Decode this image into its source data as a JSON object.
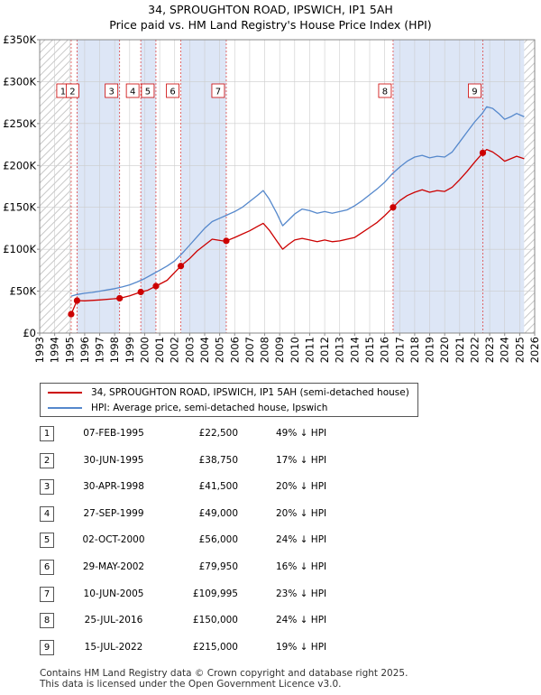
{
  "title_line1": "34, SPROUGHTON ROAD, IPSWICH, IP1 5AH",
  "title_line2": "Price paid vs. HM Land Registry's House Price Index (HPI)",
  "legend": {
    "red_label": "34, SPROUGHTON ROAD, IPSWICH, IP1 5AH (semi-detached house)",
    "blue_label": "HPI: Average price, semi-detached house, Ipswich"
  },
  "colors": {
    "red": "#cc0000",
    "blue": "#5588cc",
    "shade": "#dde6f6",
    "hatch": "#c8c8c8",
    "grid": "#cccccc",
    "vline": "#dd4444"
  },
  "transactions": [
    {
      "num": "1",
      "date": "07-FEB-1995",
      "price": "£22,500",
      "hpi": "49% ↓ HPI"
    },
    {
      "num": "2",
      "date": "30-JUN-1995",
      "price": "£38,750",
      "hpi": "17% ↓ HPI"
    },
    {
      "num": "3",
      "date": "30-APR-1998",
      "price": "£41,500",
      "hpi": "20% ↓ HPI"
    },
    {
      "num": "4",
      "date": "27-SEP-1999",
      "price": "£49,000",
      "hpi": "20% ↓ HPI"
    },
    {
      "num": "5",
      "date": "02-OCT-2000",
      "price": "£56,000",
      "hpi": "24% ↓ HPI"
    },
    {
      "num": "6",
      "date": "29-MAY-2002",
      "price": "£79,950",
      "hpi": "16% ↓ HPI"
    },
    {
      "num": "7",
      "date": "10-JUN-2005",
      "price": "£109,995",
      "hpi": "23% ↓ HPI"
    },
    {
      "num": "8",
      "date": "25-JUL-2016",
      "price": "£150,000",
      "hpi": "24% ↓ HPI"
    },
    {
      "num": "9",
      "date": "15-JUL-2022",
      "price": "£215,000",
      "hpi": "19% ↓ HPI"
    }
  ],
  "footer_line1": "Contains HM Land Registry data © Crown copyright and database right 2025.",
  "footer_line2": "This data is licensed under the Open Government Licence v3.0.",
  "chart_data": {
    "type": "line",
    "title": "34, SPROUGHTON ROAD, IPSWICH, IP1 5AH — Price paid vs. HM Land Registry's House Price Index (HPI)",
    "xlim": [
      1993,
      2026
    ],
    "ylim": [
      0,
      350000
    ],
    "x_ticks": [
      "1993",
      "1994",
      "1995",
      "1996",
      "1997",
      "1998",
      "1999",
      "2000",
      "2001",
      "2002",
      "2003",
      "2004",
      "2005",
      "2006",
      "2007",
      "2008",
      "2009",
      "2010",
      "2011",
      "2012",
      "2013",
      "2014",
      "2015",
      "2016",
      "2017",
      "2018",
      "2019",
      "2020",
      "2021",
      "2022",
      "2023",
      "2024",
      "2025",
      "2026"
    ],
    "y_ticks": [
      {
        "value": 0,
        "label": "£0"
      },
      {
        "value": 50000,
        "label": "£50K"
      },
      {
        "value": 100000,
        "label": "£100K"
      },
      {
        "value": 150000,
        "label": "£150K"
      },
      {
        "value": 200000,
        "label": "£200K"
      },
      {
        "value": 250000,
        "label": "£250K"
      },
      {
        "value": 300000,
        "label": "£300K"
      },
      {
        "value": 350000,
        "label": "£350K"
      }
    ],
    "hatched_ranges": [
      [
        1993,
        1995.1
      ],
      [
        2025.3,
        2026
      ]
    ],
    "sales": [
      {
        "label": "1",
        "x": 1995.1,
        "y": 22500
      },
      {
        "label": "2",
        "x": 1995.49,
        "y": 38750
      },
      {
        "label": "3",
        "x": 1998.33,
        "y": 41500
      },
      {
        "label": "4",
        "x": 1999.74,
        "y": 49000
      },
      {
        "label": "5",
        "x": 2000.75,
        "y": 56000
      },
      {
        "label": "6",
        "x": 2002.41,
        "y": 79950
      },
      {
        "label": "7",
        "x": 2005.44,
        "y": 109995
      },
      {
        "label": "8",
        "x": 2016.56,
        "y": 150000
      },
      {
        "label": "9",
        "x": 2022.54,
        "y": 215000
      }
    ],
    "series": [
      {
        "name": "HPI: Average price, semi-detached house, Ipswich",
        "color": "#5588cc",
        "points": [
          [
            1995.1,
            44000
          ],
          [
            1995.5,
            46000
          ],
          [
            1996,
            47500
          ],
          [
            1996.5,
            48500
          ],
          [
            1997,
            50000
          ],
          [
            1997.5,
            51500
          ],
          [
            1998,
            53000
          ],
          [
            1998.5,
            55000
          ],
          [
            1999,
            57500
          ],
          [
            1999.5,
            61000
          ],
          [
            2000,
            65000
          ],
          [
            2000.5,
            70000
          ],
          [
            2001,
            75000
          ],
          [
            2001.5,
            80000
          ],
          [
            2002,
            86000
          ],
          [
            2002.5,
            95000
          ],
          [
            2003,
            105000
          ],
          [
            2003.5,
            115000
          ],
          [
            2004,
            125000
          ],
          [
            2004.5,
            133000
          ],
          [
            2005,
            137000
          ],
          [
            2005.5,
            141000
          ],
          [
            2006,
            145000
          ],
          [
            2006.5,
            150000
          ],
          [
            2007,
            157000
          ],
          [
            2007.5,
            164000
          ],
          [
            2007.9,
            170000
          ],
          [
            2008.3,
            160000
          ],
          [
            2008.8,
            143000
          ],
          [
            2009.2,
            128000
          ],
          [
            2009.6,
            135000
          ],
          [
            2010,
            142000
          ],
          [
            2010.5,
            148000
          ],
          [
            2011,
            146000
          ],
          [
            2011.5,
            143000
          ],
          [
            2012,
            145000
          ],
          [
            2012.5,
            143000
          ],
          [
            2013,
            145000
          ],
          [
            2013.5,
            147000
          ],
          [
            2014,
            152000
          ],
          [
            2014.5,
            158000
          ],
          [
            2015,
            165000
          ],
          [
            2015.5,
            172000
          ],
          [
            2016,
            180000
          ],
          [
            2016.5,
            190000
          ],
          [
            2017,
            198000
          ],
          [
            2017.5,
            205000
          ],
          [
            2018,
            210000
          ],
          [
            2018.5,
            212000
          ],
          [
            2019,
            209000
          ],
          [
            2019.5,
            211000
          ],
          [
            2020,
            210000
          ],
          [
            2020.5,
            216000
          ],
          [
            2021,
            228000
          ],
          [
            2021.5,
            240000
          ],
          [
            2022,
            252000
          ],
          [
            2022.5,
            262000
          ],
          [
            2022.8,
            270000
          ],
          [
            2023.2,
            268000
          ],
          [
            2023.6,
            262000
          ],
          [
            2024,
            255000
          ],
          [
            2024.4,
            258000
          ],
          [
            2024.8,
            262000
          ],
          [
            2025.3,
            258000
          ]
        ]
      },
      {
        "name": "34, SPROUGHTON ROAD, IPSWICH, IP1 5AH (semi-detached house)",
        "color": "#cc0000",
        "points": [
          [
            1995.1,
            22500
          ],
          [
            1995.49,
            38750
          ],
          [
            1996,
            38500
          ],
          [
            1997,
            39500
          ],
          [
            1998.33,
            41500
          ],
          [
            1999,
            44500
          ],
          [
            1999.74,
            49000
          ],
          [
            2000.2,
            51000
          ],
          [
            2000.75,
            56000
          ],
          [
            2001.5,
            63000
          ],
          [
            2002.41,
            79950
          ],
          [
            2003,
            89000
          ],
          [
            2003.5,
            98000
          ],
          [
            2004,
            105000
          ],
          [
            2004.5,
            112000
          ],
          [
            2005.2,
            110000
          ],
          [
            2005.44,
            109995
          ],
          [
            2006,
            114000
          ],
          [
            2006.5,
            118000
          ],
          [
            2007,
            122000
          ],
          [
            2007.5,
            127000
          ],
          [
            2007.9,
            131000
          ],
          [
            2008.3,
            123000
          ],
          [
            2008.8,
            110000
          ],
          [
            2009.2,
            100000
          ],
          [
            2009.6,
            106000
          ],
          [
            2010,
            111000
          ],
          [
            2010.5,
            113000
          ],
          [
            2011,
            111000
          ],
          [
            2011.5,
            109000
          ],
          [
            2012,
            111000
          ],
          [
            2012.5,
            109000
          ],
          [
            2013,
            110000
          ],
          [
            2013.5,
            112000
          ],
          [
            2014,
            114000
          ],
          [
            2014.5,
            120000
          ],
          [
            2015,
            126000
          ],
          [
            2015.5,
            132000
          ],
          [
            2016,
            140000
          ],
          [
            2016.56,
            150000
          ],
          [
            2017,
            158000
          ],
          [
            2017.5,
            164000
          ],
          [
            2018,
            168000
          ],
          [
            2018.5,
            171000
          ],
          [
            2019,
            168000
          ],
          [
            2019.5,
            170000
          ],
          [
            2020,
            169000
          ],
          [
            2020.5,
            174000
          ],
          [
            2021,
            183000
          ],
          [
            2021.5,
            193000
          ],
          [
            2022,
            204000
          ],
          [
            2022.54,
            215000
          ],
          [
            2022.8,
            219000
          ],
          [
            2023.2,
            216000
          ],
          [
            2023.6,
            211000
          ],
          [
            2024,
            205000
          ],
          [
            2024.4,
            208000
          ],
          [
            2024.8,
            211000
          ],
          [
            2025.3,
            208000
          ]
        ]
      }
    ]
  }
}
